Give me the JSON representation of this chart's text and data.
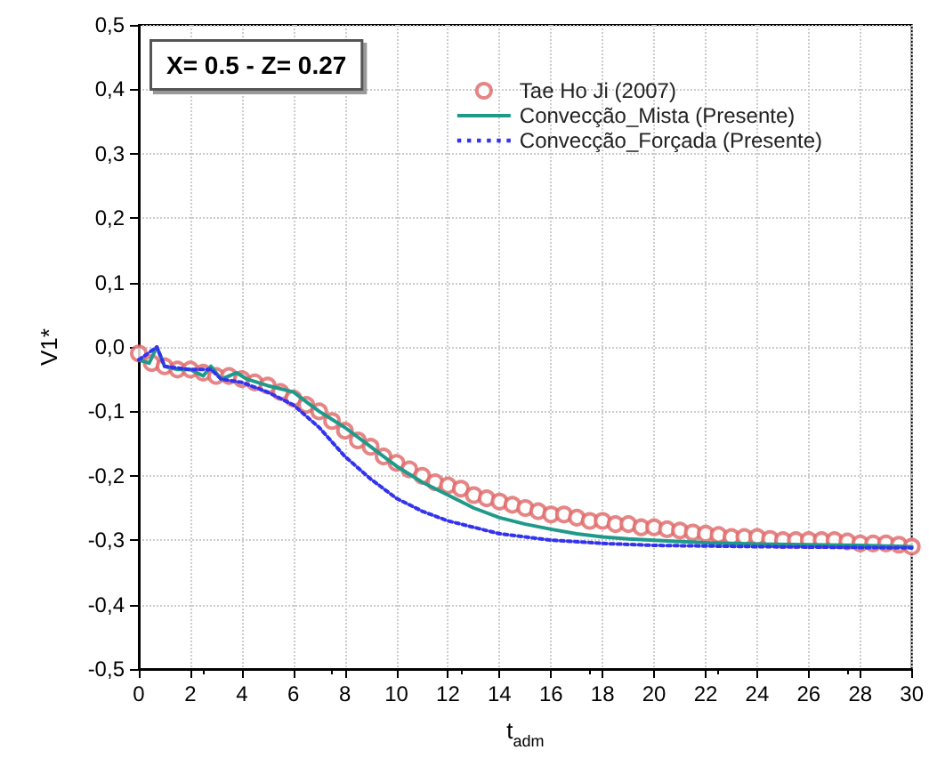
{
  "chart_data": {
    "type": "line",
    "xlabel": "t$_{adm}$",
    "ylabel": "V1*",
    "annotations": [
      "X= 0.5 - Z= 0.27"
    ],
    "xlim": [
      0,
      30
    ],
    "xticks": [
      0,
      2,
      4,
      6,
      8,
      10,
      12,
      14,
      16,
      18,
      20,
      22,
      24,
      26,
      28,
      30
    ],
    "ylim": [
      -0.5,
      0.5
    ],
    "yticks": [
      {
        "value": -0.5,
        "label": "-0,5"
      },
      {
        "value": -0.4,
        "label": "-0,4"
      },
      {
        "value": -0.3,
        "label": "-0,3"
      },
      {
        "value": -0.2,
        "label": "-0,2"
      },
      {
        "value": -0.1,
        "label": "-0,1"
      },
      {
        "value": 0,
        "label": "0,0"
      },
      {
        "value": 0.1,
        "label": "0,1"
      },
      {
        "value": 0.2,
        "label": "0,2"
      },
      {
        "value": 0.3,
        "label": "0,3"
      },
      {
        "value": 0.4,
        "label": "0,4"
      },
      {
        "value": 0.5,
        "label": "0,5"
      }
    ],
    "grid": true,
    "legend": "top right",
    "series": [
      {
        "name": "Tae Ho Ji (2007)",
        "type": "scatter",
        "marker": "circle",
        "color": "#e06666",
        "x": [
          0,
          0.5,
          1,
          1.5,
          2,
          2.5,
          3,
          3.5,
          4,
          4.5,
          5,
          5.5,
          6,
          6.5,
          7,
          7.5,
          8,
          8.5,
          9,
          9.5,
          10,
          10.5,
          11,
          11.5,
          12,
          12.5,
          13,
          13.5,
          14,
          14.5,
          15,
          15.5,
          16,
          16.5,
          17,
          17.5,
          18,
          18.5,
          19,
          19.5,
          20,
          20.5,
          21,
          21.5,
          22,
          22.5,
          23,
          23.5,
          24,
          24.5,
          25,
          25.5,
          26,
          26.5,
          27,
          27.5,
          28,
          28.5,
          29,
          29.5,
          30
        ],
        "values": [
          -0.01,
          -0.025,
          -0.03,
          -0.035,
          -0.035,
          -0.04,
          -0.045,
          -0.045,
          -0.05,
          -0.055,
          -0.06,
          -0.07,
          -0.08,
          -0.09,
          -0.1,
          -0.115,
          -0.13,
          -0.145,
          -0.155,
          -0.17,
          -0.18,
          -0.19,
          -0.2,
          -0.21,
          -0.215,
          -0.22,
          -0.23,
          -0.235,
          -0.24,
          -0.245,
          -0.25,
          -0.255,
          -0.26,
          -0.26,
          -0.265,
          -0.27,
          -0.27,
          -0.275,
          -0.275,
          -0.28,
          -0.28,
          -0.283,
          -0.285,
          -0.288,
          -0.29,
          -0.292,
          -0.295,
          -0.295,
          -0.295,
          -0.298,
          -0.3,
          -0.3,
          -0.3,
          -0.3,
          -0.3,
          -0.302,
          -0.305,
          -0.305,
          -0.305,
          -0.307,
          -0.31
        ]
      },
      {
        "name": "Convecção_Mista (Presente)",
        "marker": "none",
        "line_style": "solid",
        "color": "#1f9a8a",
        "x": [
          0,
          0.4,
          0.7,
          1.0,
          1.5,
          2,
          2.5,
          2.8,
          3.2,
          3.8,
          4.2,
          5,
          5.5,
          6,
          6.5,
          7,
          8,
          9,
          10,
          11,
          12,
          13,
          14,
          15,
          16,
          17,
          18,
          19,
          20,
          22,
          24,
          26,
          28,
          30
        ],
        "values": [
          -0.02,
          -0.025,
          0.0,
          -0.03,
          -0.035,
          -0.035,
          -0.045,
          -0.03,
          -0.05,
          -0.04,
          -0.05,
          -0.06,
          -0.065,
          -0.07,
          -0.085,
          -0.1,
          -0.125,
          -0.155,
          -0.185,
          -0.21,
          -0.23,
          -0.25,
          -0.265,
          -0.275,
          -0.283,
          -0.29,
          -0.295,
          -0.298,
          -0.3,
          -0.304,
          -0.306,
          -0.307,
          -0.308,
          -0.31
        ]
      },
      {
        "name": "Convecção_Forçada (Presente)",
        "marker": "none",
        "line_style": "dotted",
        "color": "#3333ee",
        "x": [
          0,
          0.7,
          1,
          2,
          2.8,
          3.2,
          4,
          5,
          6,
          7,
          8,
          9,
          10,
          11,
          12,
          13,
          14,
          15,
          16,
          18,
          20,
          24,
          30
        ],
        "values": [
          -0.02,
          0.0,
          -0.03,
          -0.035,
          -0.035,
          -0.05,
          -0.055,
          -0.07,
          -0.09,
          -0.125,
          -0.17,
          -0.205,
          -0.235,
          -0.255,
          -0.27,
          -0.28,
          -0.29,
          -0.295,
          -0.3,
          -0.305,
          -0.308,
          -0.31,
          -0.312
        ]
      }
    ]
  }
}
